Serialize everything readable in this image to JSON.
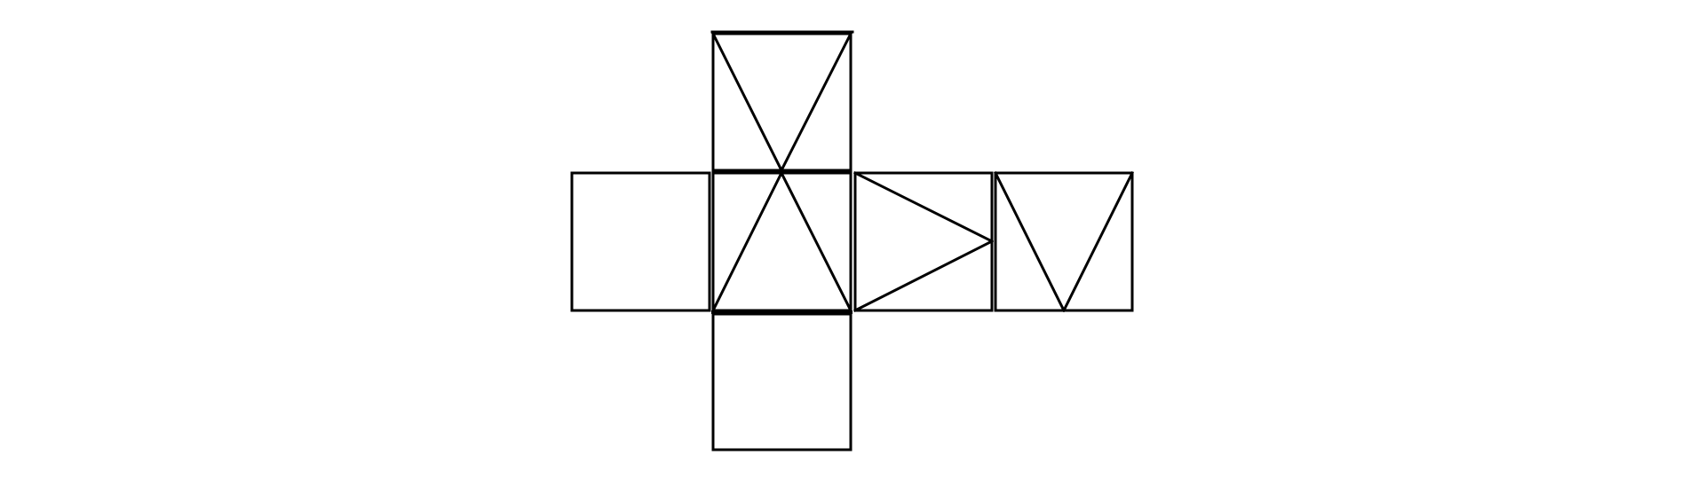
{
  "diagram": {
    "type": "cube-net",
    "face_count": 6,
    "colors": {
      "background": "#ffffff",
      "stroke": "#000000"
    },
    "faces": [
      {
        "name": "face-top",
        "pattern": "v-from-top-corners"
      },
      {
        "name": "face-left",
        "pattern": "blank"
      },
      {
        "name": "face-center",
        "pattern": "inverted-v-from-top-midpoint"
      },
      {
        "name": "face-right",
        "pattern": "arrow-to-right-midpoint"
      },
      {
        "name": "face-far-right",
        "pattern": "v-from-top-corners"
      },
      {
        "name": "face-bottom",
        "pattern": "blank"
      }
    ]
  }
}
